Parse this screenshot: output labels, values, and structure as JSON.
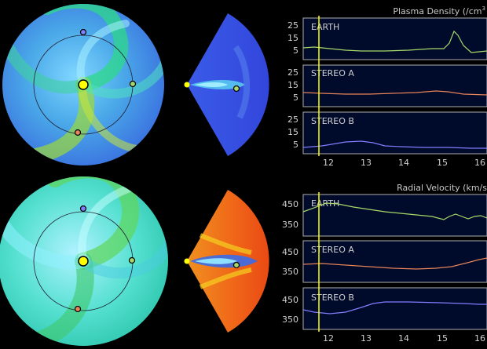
{
  "density_panel": {
    "title": "Plasma Density (/cm",
    "title_sup": "3",
    "tracks": [
      {
        "label": "EARTH",
        "ticks": [
          "25",
          "15",
          "5"
        ],
        "color": "#a6d96a"
      },
      {
        "label": "STEREO A",
        "ticks": [
          "25",
          "15",
          "5"
        ],
        "color": "#e7845a"
      },
      {
        "label": "STEREO B",
        "ticks": [
          "25",
          "15",
          "5"
        ],
        "color": "#7f7fff"
      }
    ],
    "x_ticks": [
      "12",
      "13",
      "14",
      "15",
      "16"
    ]
  },
  "velocity_panel": {
    "title": "Radial Velocity (km/s",
    "tracks": [
      {
        "label": "EARTH",
        "ticks": [
          "450",
          "350"
        ],
        "color": "#a6d96a"
      },
      {
        "label": "STEREO A",
        "ticks": [
          "450",
          "350"
        ],
        "color": "#e7845a"
      },
      {
        "label": "STEREO B",
        "ticks": [
          "450",
          "350"
        ],
        "color": "#7f7fff"
      }
    ],
    "x_ticks": [
      "12",
      "13",
      "14",
      "15",
      "16"
    ]
  },
  "colors": {
    "background": "#000000",
    "panel_bg": "#000a2a",
    "axis": "#b0b0b0",
    "cursor": "#ffff00",
    "sun": "#ffff00"
  }
}
